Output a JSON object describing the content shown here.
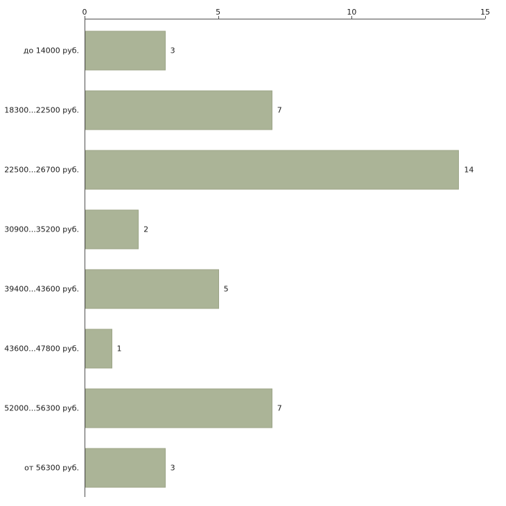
{
  "chart_data": {
    "type": "bar",
    "orientation": "horizontal",
    "title": "",
    "xlabel": "",
    "ylabel": "",
    "categories": [
      "до 14000 руб.",
      "18300...22500 руб.",
      "22500...26700 руб.",
      "30900...35200 руб.",
      "39400...43600 руб.",
      "43600...47800 руб.",
      "52000...56300 руб.",
      "от 56300 руб."
    ],
    "values": [
      3,
      7,
      14,
      2,
      5,
      1,
      7,
      3
    ],
    "xlim": [
      0,
      15
    ],
    "x_ticks": [
      0,
      5,
      10,
      15
    ],
    "grid": false,
    "legend": false,
    "value_labels": true,
    "colors": {
      "bar_fill": "#abb497",
      "bar_border": "#9ca487",
      "axis": "#4d4d4d",
      "text": "#1a1a1a",
      "background": "#ffffff"
    }
  }
}
